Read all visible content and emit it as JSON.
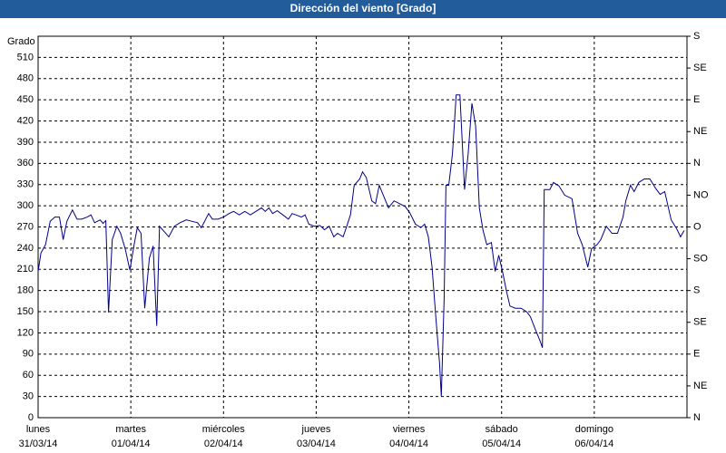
{
  "chart_data": {
    "type": "line",
    "title": "Dirección del viento [Grado]",
    "ylabel": "Grado",
    "color": "#00008b",
    "grid": true,
    "xlim": [
      0,
      7
    ],
    "xticks": [
      {
        "value": 0,
        "label": "lunes",
        "sublabel": "31/03/14"
      },
      {
        "value": 1,
        "label": "martes",
        "sublabel": "01/04/14"
      },
      {
        "value": 2,
        "label": "miércoles",
        "sublabel": "02/04/14"
      },
      {
        "value": 3,
        "label": "jueves",
        "sublabel": "03/04/14"
      },
      {
        "value": 4,
        "label": "viernes",
        "sublabel": "04/04/14"
      },
      {
        "value": 5,
        "label": "sábado",
        "sublabel": "05/04/14"
      },
      {
        "value": 6,
        "label": "domingo",
        "sublabel": "06/04/14"
      }
    ],
    "ylim": [
      0,
      540
    ],
    "yticks": [
      0,
      30,
      60,
      90,
      120,
      150,
      180,
      210,
      240,
      270,
      300,
      330,
      360,
      390,
      420,
      450,
      480,
      510
    ],
    "y2lim": [
      0,
      540
    ],
    "y2ticks": [
      {
        "value": 0,
        "label": "N"
      },
      {
        "value": 45,
        "label": "NE"
      },
      {
        "value": 90,
        "label": "E"
      },
      {
        "value": 135,
        "label": "SE"
      },
      {
        "value": 180,
        "label": "S"
      },
      {
        "value": 225,
        "label": "SO"
      },
      {
        "value": 270,
        "label": "O"
      },
      {
        "value": 315,
        "label": "NO"
      },
      {
        "value": 360,
        "label": "N"
      },
      {
        "value": 405,
        "label": "NE"
      },
      {
        "value": 450,
        "label": "E"
      },
      {
        "value": 495,
        "label": "SE"
      },
      {
        "value": 540,
        "label": "S"
      }
    ],
    "x": [
      0,
      0.03,
      0.08,
      0.13,
      0.18,
      0.23,
      0.27,
      0.31,
      0.37,
      0.42,
      0.47,
      0.53,
      0.57,
      0.61,
      0.67,
      0.7,
      0.73,
      0.76,
      0.8,
      0.85,
      0.89,
      0.94,
      0.99,
      1.04,
      1.07,
      1.11,
      1.15,
      1.2,
      1.24,
      1.28,
      1.31,
      1.35,
      1.41,
      1.47,
      1.53,
      1.6,
      1.66,
      1.72,
      1.76,
      1.8,
      1.84,
      1.88,
      1.94,
      2.0,
      2.06,
      2.11,
      2.17,
      2.23,
      2.29,
      2.35,
      2.41,
      2.45,
      2.49,
      2.53,
      2.58,
      2.64,
      2.7,
      2.74,
      2.78,
      2.84,
      2.88,
      2.92,
      2.98,
      3.04,
      3.09,
      3.14,
      3.19,
      3.23,
      3.29,
      3.33,
      3.37,
      3.41,
      3.47,
      3.5,
      3.54,
      3.6,
      3.64,
      3.68,
      3.72,
      3.78,
      3.84,
      3.9,
      3.96,
      4.01,
      4.07,
      4.13,
      4.17,
      4.21,
      4.25,
      4.29,
      4.33,
      4.35,
      4.38,
      4.4,
      4.43,
      4.47,
      4.51,
      4.55,
      4.6,
      4.64,
      4.68,
      4.72,
      4.76,
      4.8,
      4.84,
      4.89,
      4.93,
      4.97,
      5.01,
      5.05,
      5.09,
      5.15,
      5.21,
      5.27,
      5.31,
      5.37,
      5.42,
      5.44,
      5.46,
      5.52,
      5.56,
      5.62,
      5.68,
      5.76,
      5.82,
      5.87,
      5.93,
      5.97,
      6.03,
      6.07,
      6.13,
      6.19,
      6.25,
      6.31,
      6.34,
      6.39,
      6.43,
      6.48,
      6.54,
      6.6,
      6.66,
      6.71,
      6.76,
      6.79,
      6.83,
      6.89,
      6.93,
      6.97
    ],
    "values": [
      207,
      233,
      245,
      278,
      284,
      284,
      252,
      278,
      294,
      281,
      281,
      284,
      287,
      276,
      280,
      275,
      279,
      149,
      252,
      271,
      261,
      239,
      209,
      248,
      269,
      261,
      155,
      226,
      243,
      130,
      271,
      265,
      256,
      271,
      276,
      280,
      278,
      276,
      269,
      279,
      289,
      281,
      281,
      284,
      289,
      292,
      287,
      292,
      287,
      292,
      297,
      292,
      297,
      289,
      293,
      287,
      281,
      289,
      287,
      284,
      287,
      274,
      271,
      272,
      266,
      271,
      256,
      261,
      256,
      271,
      287,
      329,
      338,
      348,
      340,
      307,
      303,
      329,
      316,
      297,
      307,
      303,
      299,
      290,
      274,
      269,
      274,
      256,
      213,
      143,
      78,
      30,
      168,
      329,
      329,
      374,
      457,
      457,
      323,
      374,
      445,
      413,
      297,
      265,
      245,
      248,
      207,
      230,
      207,
      181,
      158,
      155,
      155,
      150,
      143,
      123,
      107,
      99,
      323,
      323,
      333,
      328,
      315,
      310,
      261,
      245,
      213,
      239,
      245,
      252,
      271,
      261,
      261,
      284,
      307,
      329,
      320,
      333,
      338,
      338,
      325,
      316,
      320,
      303,
      280,
      267,
      256,
      265
    ]
  }
}
